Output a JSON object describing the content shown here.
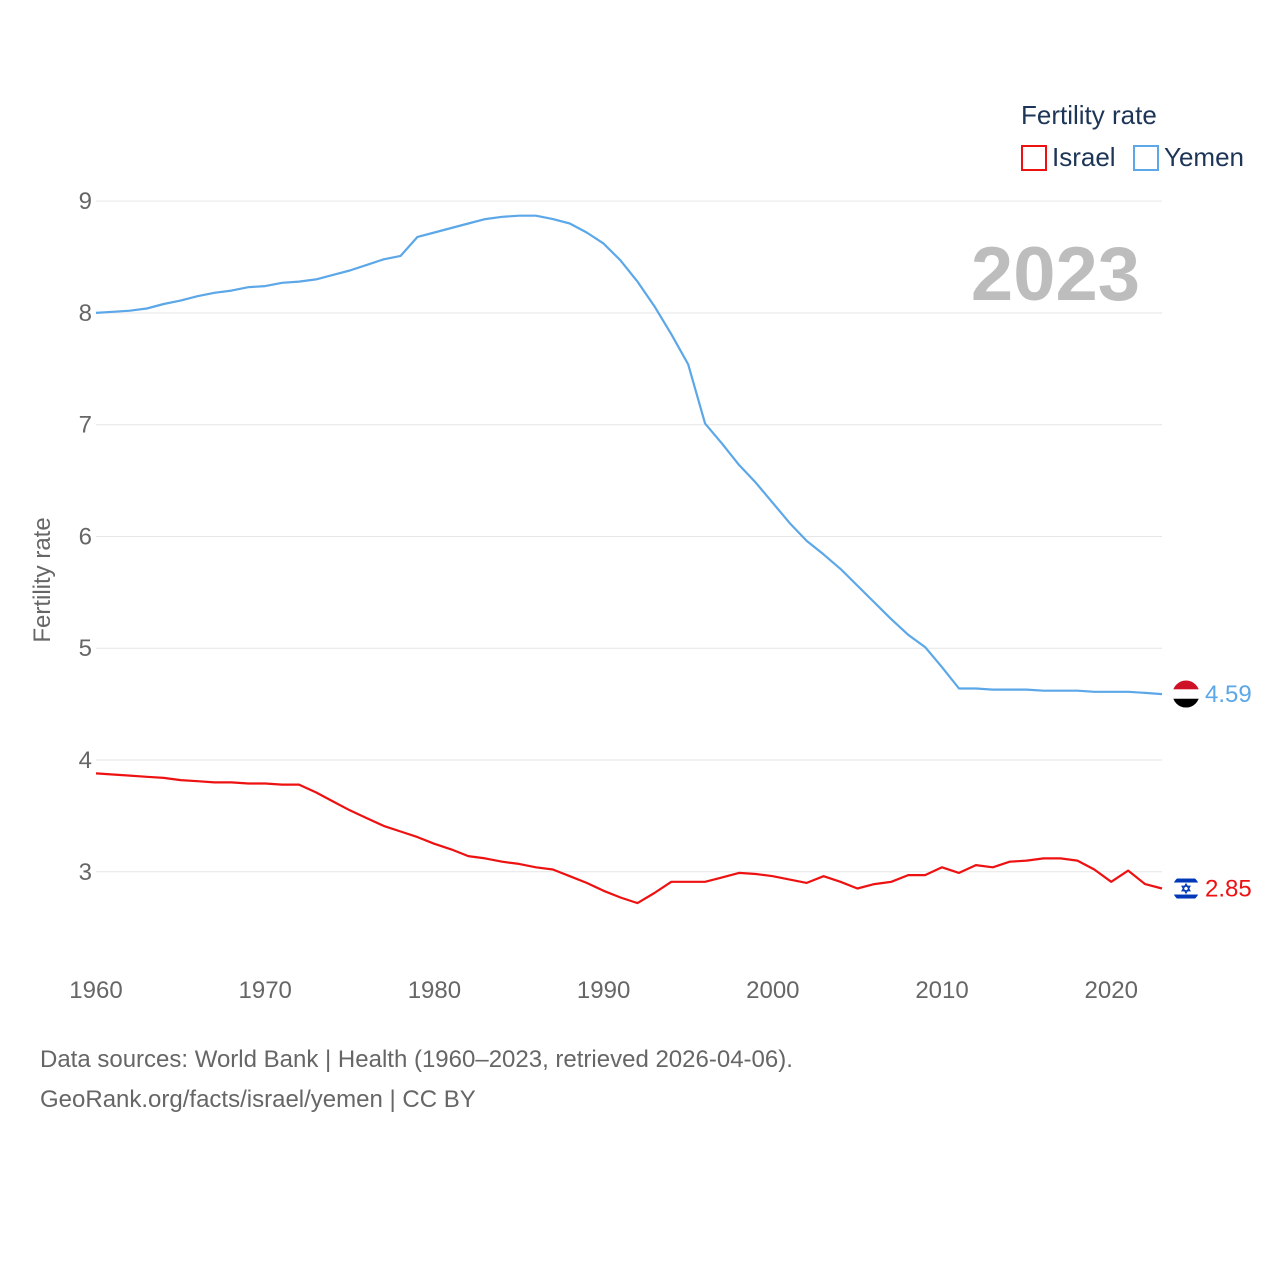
{
  "legend": {
    "title": "Fertility rate",
    "items": [
      {
        "label": "Israel",
        "color": "#ee1111"
      },
      {
        "label": "Yemen",
        "color": "#5ba7e8"
      }
    ]
  },
  "current_year": "2023",
  "sources": {
    "line1": "Data sources: World Bank | Health (1960–2023, retrieved 2026-04-06).",
    "line2": "GeoRank.org/facts/israel/yemen | CC BY"
  },
  "chart_data": {
    "type": "line",
    "title": "",
    "xlabel": "",
    "ylabel": "Fertility rate",
    "xlim": [
      1960,
      2023
    ],
    "ylim": [
      2.3,
      9.1
    ],
    "x_ticks": [
      1960,
      1970,
      1980,
      1990,
      2000,
      2010,
      2020
    ],
    "y_ticks": [
      3,
      4,
      5,
      6,
      7,
      8,
      9
    ],
    "grid": true,
    "legend_position": "top-right",
    "series": [
      {
        "name": "Israel",
        "color": "#ee1111",
        "end_label": "2.85",
        "flag": "israel-flag",
        "x": [
          1960,
          1961,
          1962,
          1963,
          1964,
          1965,
          1966,
          1967,
          1968,
          1969,
          1970,
          1971,
          1972,
          1973,
          1974,
          1975,
          1976,
          1977,
          1978,
          1979,
          1980,
          1981,
          1982,
          1983,
          1984,
          1985,
          1986,
          1987,
          1988,
          1989,
          1990,
          1991,
          1992,
          1993,
          1994,
          1995,
          1996,
          1997,
          1998,
          1999,
          2000,
          2001,
          2002,
          2003,
          2004,
          2005,
          2006,
          2007,
          2008,
          2009,
          2010,
          2011,
          2012,
          2013,
          2014,
          2015,
          2016,
          2017,
          2018,
          2019,
          2020,
          2021,
          2022,
          2023
        ],
        "values": [
          3.88,
          3.87,
          3.86,
          3.85,
          3.84,
          3.82,
          3.81,
          3.8,
          3.8,
          3.79,
          3.79,
          3.78,
          3.78,
          3.71,
          3.63,
          3.55,
          3.48,
          3.41,
          3.36,
          3.31,
          3.25,
          3.2,
          3.14,
          3.12,
          3.09,
          3.07,
          3.04,
          3.02,
          2.96,
          2.9,
          2.83,
          2.77,
          2.72,
          2.81,
          2.91,
          2.91,
          2.91,
          2.95,
          2.99,
          2.98,
          2.96,
          2.93,
          2.9,
          2.96,
          2.91,
          2.85,
          2.89,
          2.91,
          2.97,
          2.97,
          3.04,
          2.99,
          3.06,
          3.04,
          3.09,
          3.1,
          3.12,
          3.12,
          3.1,
          3.02,
          2.91,
          3.01,
          2.89,
          2.85
        ]
      },
      {
        "name": "Yemen",
        "color": "#5ba7e8",
        "end_label": "4.59",
        "flag": "yemen-flag",
        "x": [
          1960,
          1961,
          1962,
          1963,
          1964,
          1965,
          1966,
          1967,
          1968,
          1969,
          1970,
          1971,
          1972,
          1973,
          1974,
          1975,
          1976,
          1977,
          1978,
          1979,
          1980,
          1981,
          1982,
          1983,
          1984,
          1985,
          1986,
          1987,
          1988,
          1989,
          1990,
          1991,
          1992,
          1993,
          1994,
          1995,
          1996,
          1997,
          1998,
          1999,
          2000,
          2001,
          2002,
          2003,
          2004,
          2005,
          2006,
          2007,
          2008,
          2009,
          2010,
          2011,
          2012,
          2013,
          2014,
          2015,
          2016,
          2017,
          2018,
          2019,
          2020,
          2021,
          2022,
          2023
        ],
        "values": [
          8.0,
          8.01,
          8.02,
          8.04,
          8.08,
          8.11,
          8.15,
          8.18,
          8.2,
          8.23,
          8.24,
          8.27,
          8.28,
          8.3,
          8.34,
          8.38,
          8.43,
          8.48,
          8.51,
          8.68,
          8.72,
          8.76,
          8.8,
          8.84,
          8.86,
          8.87,
          8.87,
          8.84,
          8.8,
          8.72,
          8.62,
          8.47,
          8.28,
          8.06,
          7.81,
          7.54,
          7.01,
          6.83,
          6.64,
          6.48,
          6.3,
          6.12,
          5.96,
          5.84,
          5.71,
          5.56,
          5.41,
          5.26,
          5.12,
          5.01,
          4.83,
          4.64,
          4.64,
          4.63,
          4.63,
          4.63,
          4.62,
          4.62,
          4.62,
          4.61,
          4.61,
          4.61,
          4.6,
          4.59
        ]
      }
    ]
  }
}
